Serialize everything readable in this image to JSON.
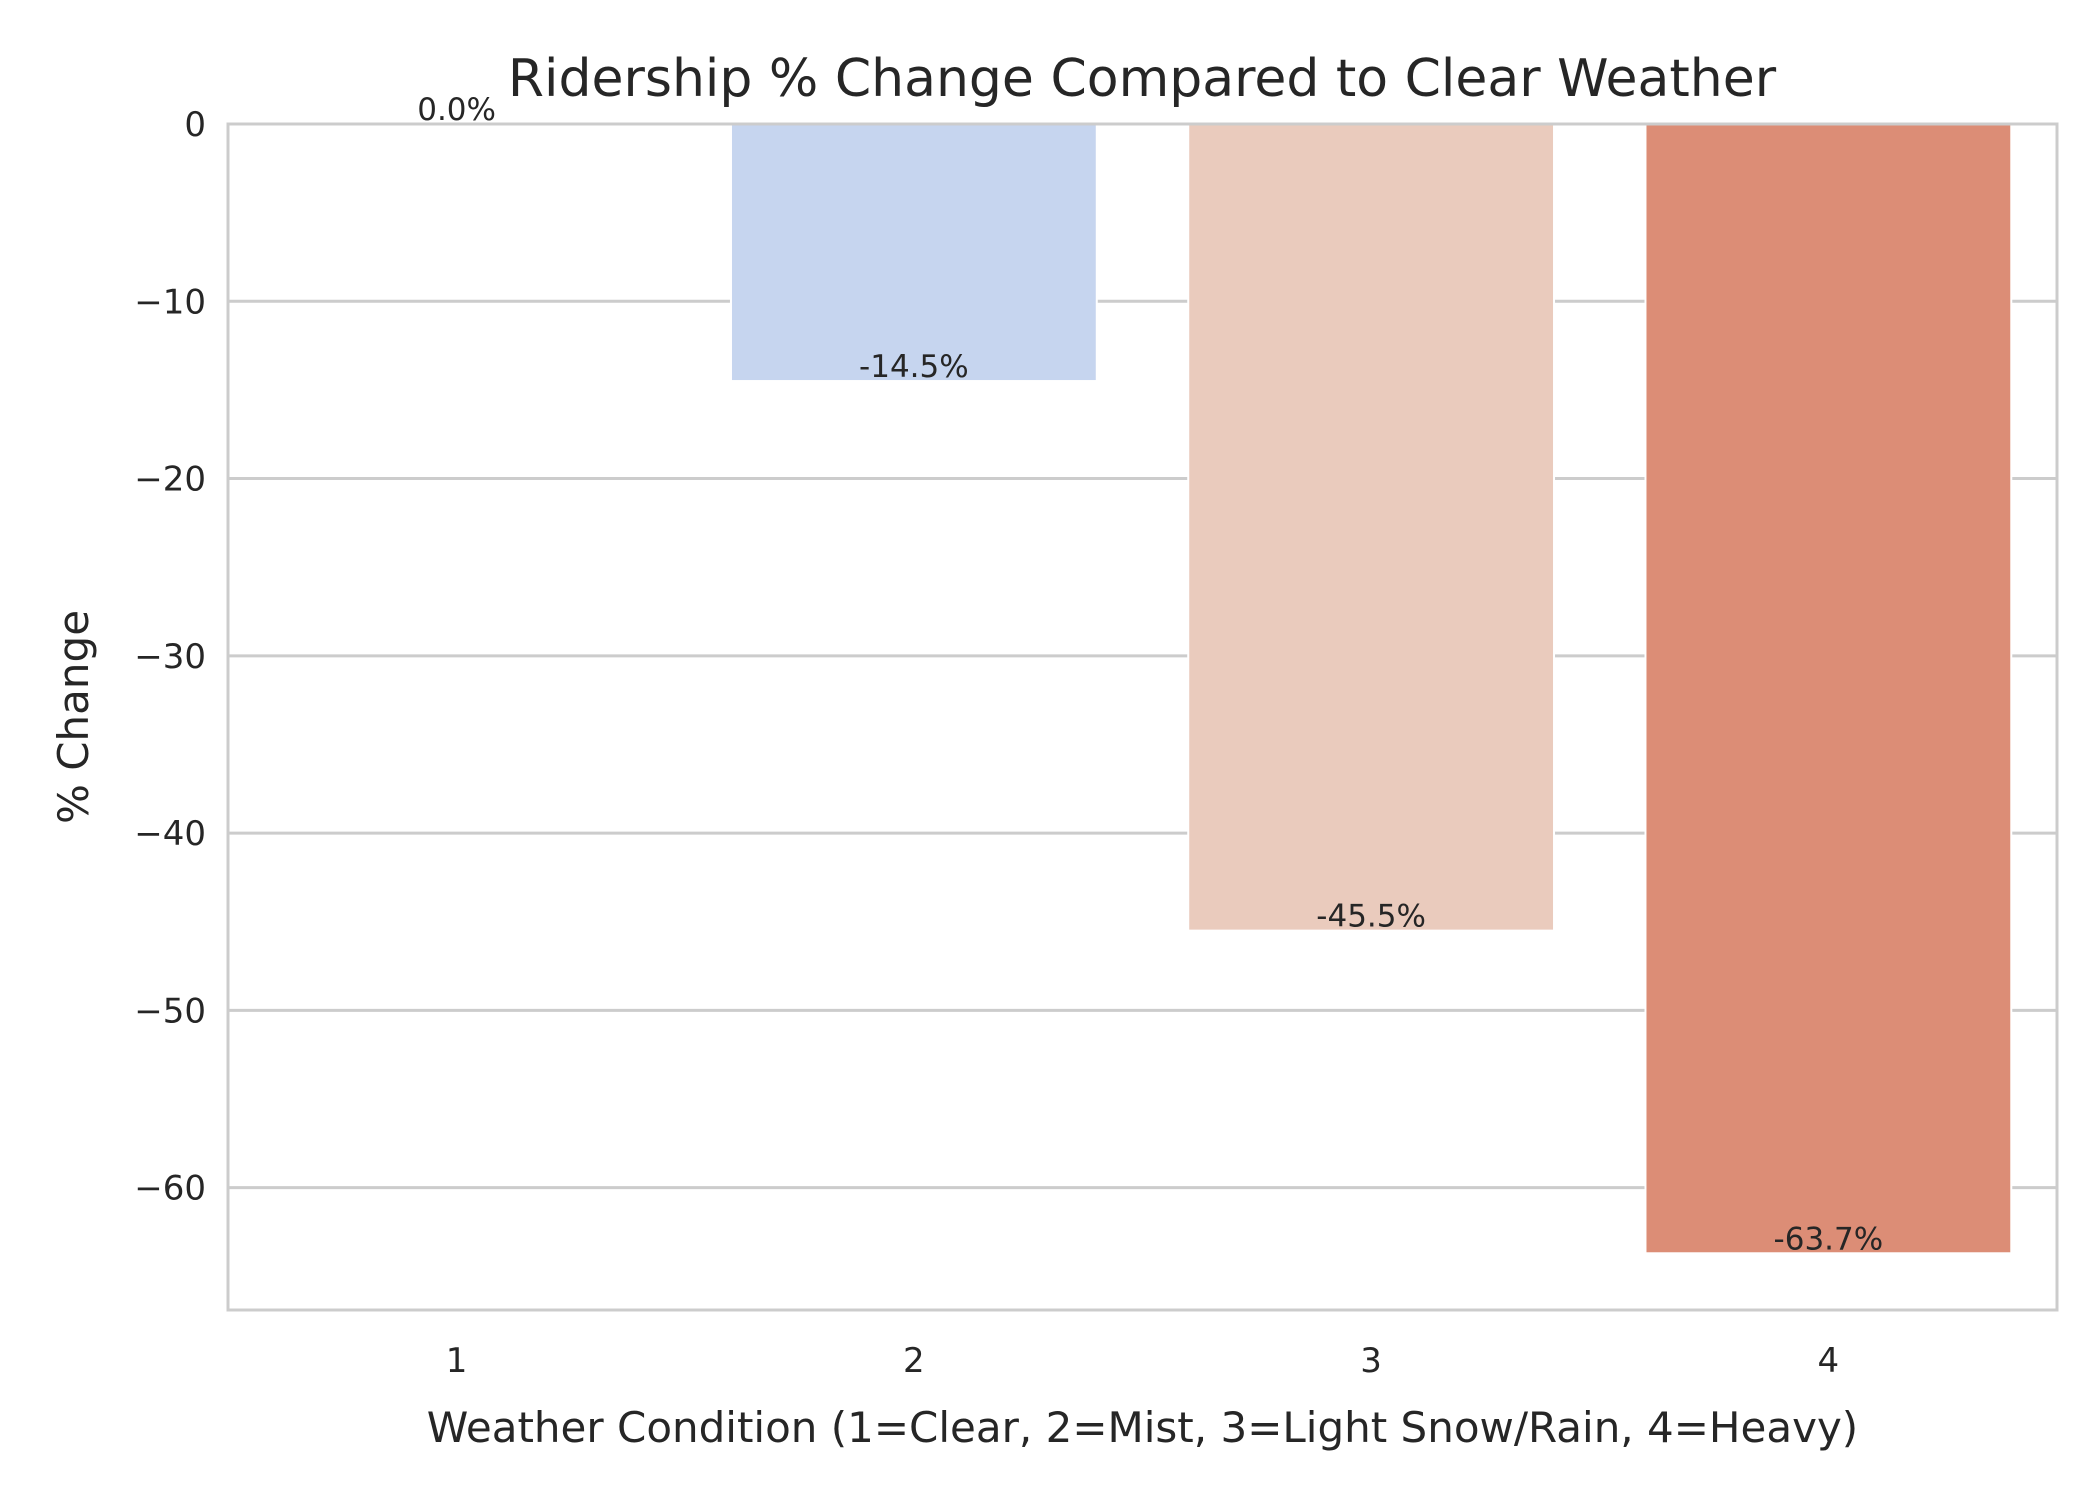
{
  "chart_data": {
    "type": "bar",
    "title": "Ridership % Change Compared to Clear Weather",
    "xlabel": "Weather Condition (1=Clear, 2=Mist, 3=Light Snow/Rain, 4=Heavy)",
    "ylabel": "% Change",
    "categories": [
      "1",
      "2",
      "3",
      "4"
    ],
    "values": [
      0.0,
      -14.5,
      -45.5,
      -63.7
    ],
    "data_labels": [
      "0.0%",
      "-14.5%",
      "-45.5%",
      "-63.7%"
    ],
    "bar_colors": [
      "#6788ee",
      "#c6d5ef",
      "#eacbbd",
      "#dc8d76"
    ],
    "ylim": [
      -66.9,
      0
    ],
    "yticks": [
      0,
      -10,
      -20,
      -30,
      -40,
      -50,
      -60
    ],
    "ytick_labels": [
      "0",
      "−10",
      "−20",
      "−30",
      "−40",
      "−50",
      "−60"
    ],
    "grid": true,
    "grid_color": "#cccccc",
    "axes_color": "#cccccc",
    "legend": false
  }
}
